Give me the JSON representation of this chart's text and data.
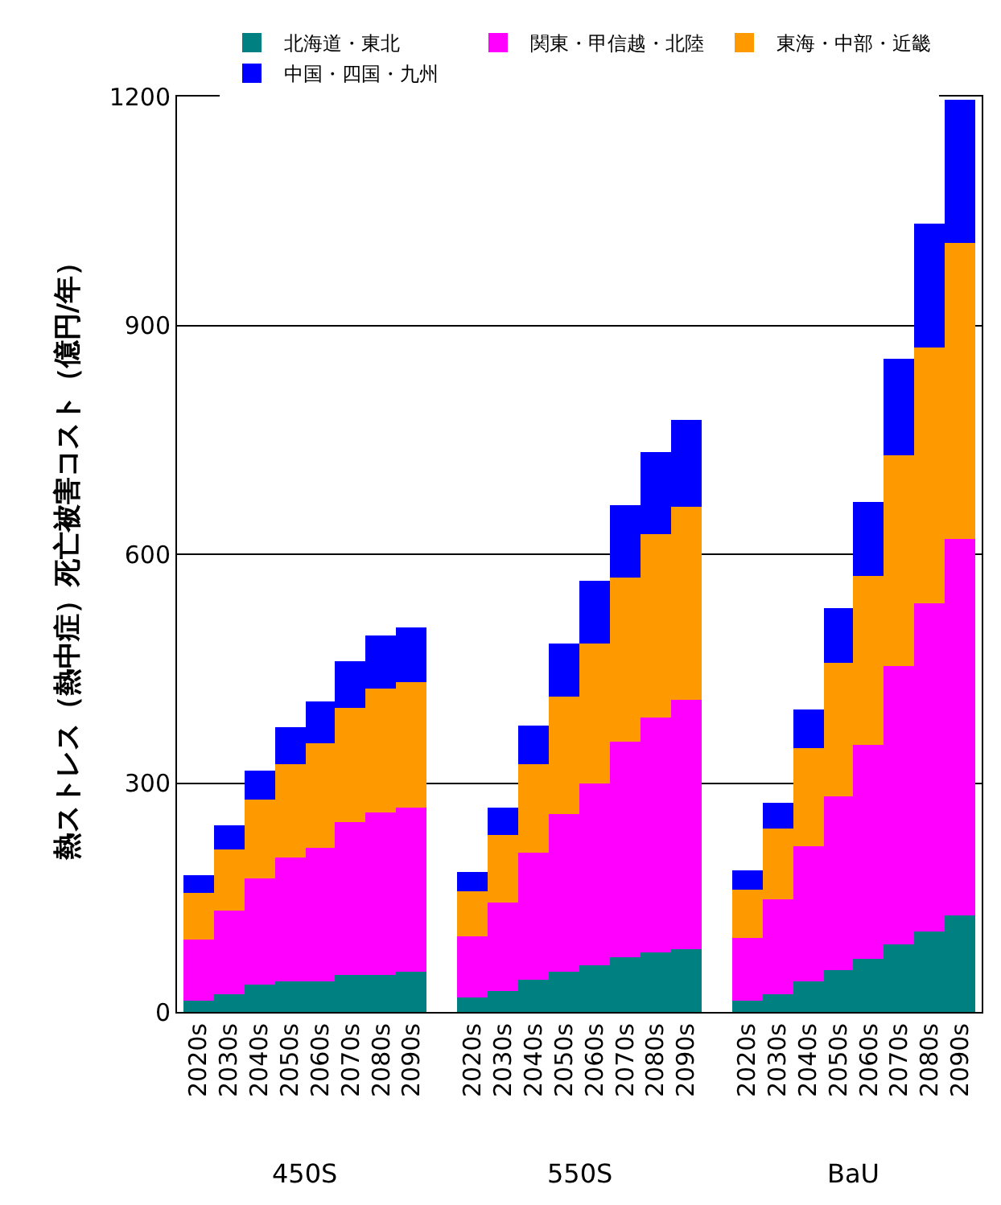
{
  "chart_data": {
    "type": "bar",
    "stacked": true,
    "ylabel": "熱ストレス（熱中症）死亡被害コスト（億円/年）",
    "categories": [
      "2020s",
      "2030s",
      "2040s",
      "2050s",
      "2060s",
      "2070s",
      "2080s",
      "2090s",
      null,
      "2020s",
      "2030s",
      "2040s",
      "2050s",
      "2060s",
      "2070s",
      "2080s",
      "2090s",
      null,
      "2020s",
      "2030s",
      "2040s",
      "2050s",
      "2060s",
      "2070s",
      "2080s",
      "2090s"
    ],
    "series": [
      {
        "name": "北海道・東北",
        "color": "#008080",
        "values": [
          14,
          23,
          35,
          40,
          41,
          49,
          49,
          52,
          null,
          18,
          27,
          42,
          52,
          62,
          72,
          78,
          82,
          null,
          15,
          23,
          40,
          54,
          69,
          89,
          106,
          127
        ]
      },
      {
        "name": "関東・甲信越・北陸",
        "color": "#ff00ff",
        "values": [
          81,
          110,
          140,
          162,
          175,
          199,
          213,
          216,
          null,
          81,
          117,
          166,
          208,
          238,
          282,
          309,
          328,
          null,
          83,
          124,
          177,
          229,
          282,
          364,
          430,
          492
        ]
      },
      {
        "name": "東海・中部・近畿",
        "color": "#ff9900",
        "values": [
          61,
          80,
          104,
          123,
          136,
          150,
          161,
          164,
          null,
          60,
          89,
          117,
          154,
          184,
          215,
          240,
          252,
          null,
          63,
          94,
          128,
          175,
          221,
          277,
          336,
          389
        ]
      },
      {
        "name": "中国・四国・九州",
        "color": "#0000ff",
        "values": [
          23,
          32,
          38,
          49,
          54,
          62,
          70,
          72,
          null,
          25,
          34,
          50,
          70,
          81,
          95,
          107,
          115,
          null,
          24,
          34,
          51,
          72,
          97,
          127,
          161,
          187
        ]
      }
    ],
    "ylim": [
      0,
      1200
    ],
    "yticks": [
      0,
      300,
      600,
      900,
      1200
    ],
    "grid": "y",
    "legend": "top",
    "annotations": [
      "450S",
      "550S",
      "BaU"
    ]
  }
}
